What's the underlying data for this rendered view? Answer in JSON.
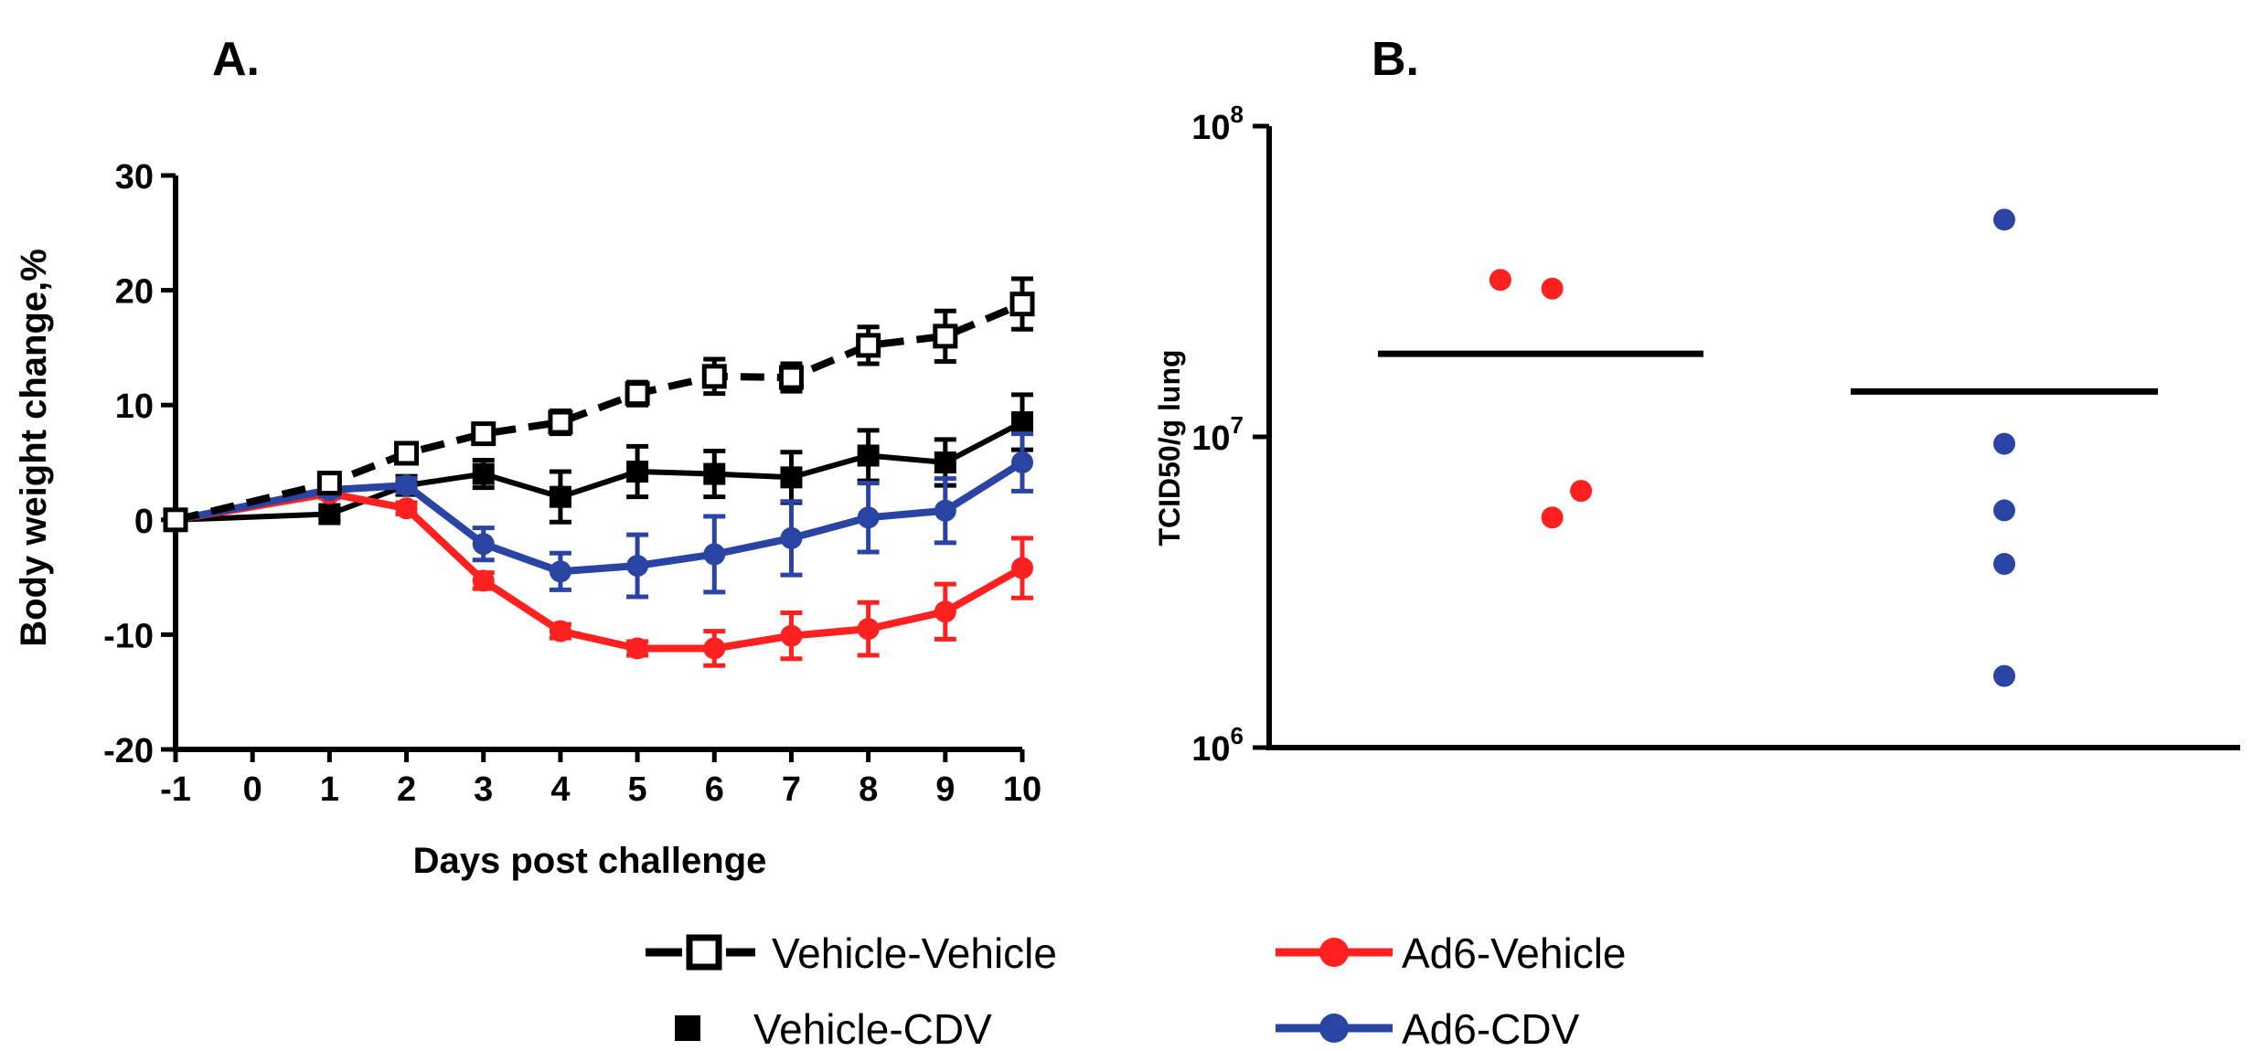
{
  "colors": {
    "vehicle_vehicle": "#000000",
    "vehicle_cdv": "#000000",
    "ad6_vehicle": "#ff2020",
    "ad6_cdv": "#2a44a3"
  },
  "chart_data": [
    {
      "panel": "A.",
      "type": "line",
      "title": "",
      "xlabel": "Days post challenge",
      "ylabel": "Body weight change,%",
      "x": [
        -1,
        0,
        1,
        2,
        3,
        4,
        5,
        6,
        7,
        8,
        9,
        10
      ],
      "x_ticks": [
        "-1",
        "0",
        "1",
        "2",
        "3",
        "4",
        "5",
        "6",
        "7",
        "8",
        "9",
        "10"
      ],
      "y_ticks": [
        "30",
        "20",
        "10",
        "0",
        "-10",
        "-20"
      ],
      "ylim": [
        -20,
        30
      ],
      "grid": false,
      "series": [
        {
          "name": "Vehicle-Vehicle",
          "style": "dashed",
          "marker": "open-square",
          "color": "#000000",
          "x": [
            -1,
            1,
            2,
            3,
            4,
            5,
            6,
            7,
            8,
            9,
            10
          ],
          "values": [
            0,
            3.2,
            5.8,
            7.5,
            8.5,
            11.0,
            12.5,
            12.4,
            15.2,
            16.0,
            18.8
          ],
          "errors": [
            0,
            0.6,
            0.7,
            0.8,
            1.0,
            1.0,
            1.5,
            1.2,
            1.6,
            2.2,
            2.2
          ]
        },
        {
          "name": "Vehicle-CDV",
          "style": "solid",
          "marker": "filled-square",
          "color": "#000000",
          "x": [
            -1,
            1,
            2,
            3,
            4,
            5,
            6,
            7,
            8,
            9,
            10
          ],
          "values": [
            0,
            0.5,
            3.0,
            4.0,
            2.0,
            4.2,
            4.0,
            3.7,
            5.6,
            5.0,
            8.5
          ],
          "errors": [
            0,
            0.5,
            0.8,
            1.2,
            2.2,
            2.2,
            2.0,
            2.2,
            2.2,
            2.0,
            2.4
          ]
        },
        {
          "name": "Ad6-Vehicle",
          "style": "solid",
          "marker": "filled-circle",
          "color": "#ff2020",
          "x": [
            -1,
            1,
            2,
            3,
            4,
            5,
            6,
            7,
            8,
            9,
            10
          ],
          "values": [
            0,
            2.3,
            1.0,
            -5.3,
            -9.7,
            -11.2,
            -11.2,
            -10.1,
            -9.5,
            -8.0,
            -4.2
          ],
          "errors": [
            0,
            0.4,
            0.5,
            0.7,
            0.6,
            0.6,
            1.5,
            2.0,
            2.3,
            2.4,
            2.6
          ]
        },
        {
          "name": "Ad6-CDV",
          "style": "solid",
          "marker": "filled-circle",
          "color": "#2a44a3",
          "x": [
            -1,
            1,
            2,
            3,
            4,
            5,
            6,
            7,
            8,
            9,
            10
          ],
          "values": [
            0,
            2.6,
            3.0,
            -2.1,
            -4.5,
            -4.0,
            -3.0,
            -1.6,
            0.2,
            0.8,
            5.0
          ],
          "errors": [
            0,
            0.5,
            0.6,
            1.4,
            1.6,
            2.7,
            3.3,
            3.2,
            3.0,
            2.8,
            2.5
          ]
        }
      ]
    },
    {
      "panel": "B.",
      "type": "scatter",
      "title": "",
      "xlabel": "",
      "ylabel": "TCID50/g lung",
      "y_scale": "log10",
      "ylim": [
        1000000,
        100000000
      ],
      "y_ticks": [
        {
          "base": "10",
          "exp": "8"
        },
        {
          "base": "10",
          "exp": "7"
        },
        {
          "base": "10",
          "exp": "6"
        }
      ],
      "groups": [
        {
          "name": "Ad6-Vehicle",
          "color": "#ff2020",
          "points": [
            32000000,
            30000000,
            6700000,
            5500000
          ],
          "jitter": [
            -0.35,
            0.1,
            0.35,
            0.1
          ],
          "mean": 18500000
        },
        {
          "name": "Ad6-CDV",
          "color": "#2a44a3",
          "points": [
            50000000,
            9500000,
            5800000,
            3900000,
            1700000
          ],
          "jitter": [
            0,
            0,
            0,
            0,
            0
          ],
          "mean": 14000000
        }
      ]
    }
  ],
  "legend": [
    {
      "label": "Vehicle-Vehicle",
      "marker": "open-square",
      "line": "dashed",
      "color": "#000000"
    },
    {
      "label": "Vehicle-CDV",
      "marker": "filled-square",
      "line": "none",
      "color": "#000000"
    },
    {
      "label": "Ad6-Vehicle",
      "marker": "filled-circle",
      "line": "solid",
      "color": "#ff2020"
    },
    {
      "label": "Ad6-CDV",
      "marker": "filled-circle",
      "line": "solid",
      "color": "#2a44a3"
    }
  ]
}
